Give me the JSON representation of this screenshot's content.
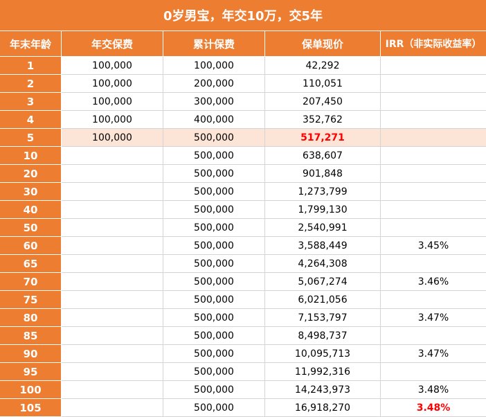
{
  "title": "0岁男宝，年交10万，交5年",
  "columns": [
    "年末年龄",
    "年交保费",
    "累计保费",
    "保单现价",
    "IRR（非实际收益率）"
  ],
  "colors": {
    "header": "#ED7D31",
    "highlight_row": "#FCE4D6",
    "emphasis_text": "#FF0000"
  },
  "rows": [
    {
      "age": "1",
      "annual": "100,000",
      "cumulative": "100,000",
      "cash_value": "42,292",
      "irr": ""
    },
    {
      "age": "2",
      "annual": "100,000",
      "cumulative": "200,000",
      "cash_value": "110,051",
      "irr": ""
    },
    {
      "age": "3",
      "annual": "100,000",
      "cumulative": "300,000",
      "cash_value": "207,450",
      "irr": ""
    },
    {
      "age": "4",
      "annual": "100,000",
      "cumulative": "400,000",
      "cash_value": "352,762",
      "irr": ""
    },
    {
      "age": "5",
      "annual": "100,000",
      "cumulative": "500,000",
      "cash_value": "517,271",
      "irr": "",
      "highlight": true,
      "emphasis": [
        "cash_value"
      ]
    },
    {
      "age": "10",
      "annual": "",
      "cumulative": "500,000",
      "cash_value": "638,607",
      "irr": ""
    },
    {
      "age": "20",
      "annual": "",
      "cumulative": "500,000",
      "cash_value": "901,848",
      "irr": ""
    },
    {
      "age": "30",
      "annual": "",
      "cumulative": "500,000",
      "cash_value": "1,273,799",
      "irr": ""
    },
    {
      "age": "40",
      "annual": "",
      "cumulative": "500,000",
      "cash_value": "1,799,130",
      "irr": ""
    },
    {
      "age": "50",
      "annual": "",
      "cumulative": "500,000",
      "cash_value": "2,540,991",
      "irr": ""
    },
    {
      "age": "60",
      "annual": "",
      "cumulative": "500,000",
      "cash_value": "3,588,449",
      "irr": "3.45%"
    },
    {
      "age": "65",
      "annual": "",
      "cumulative": "500,000",
      "cash_value": "4,264,308",
      "irr": ""
    },
    {
      "age": "70",
      "annual": "",
      "cumulative": "500,000",
      "cash_value": "5,067,274",
      "irr": "3.46%"
    },
    {
      "age": "75",
      "annual": "",
      "cumulative": "500,000",
      "cash_value": "6,021,056",
      "irr": ""
    },
    {
      "age": "80",
      "annual": "",
      "cumulative": "500,000",
      "cash_value": "7,153,797",
      "irr": "3.47%"
    },
    {
      "age": "85",
      "annual": "",
      "cumulative": "500,000",
      "cash_value": "8,498,737",
      "irr": ""
    },
    {
      "age": "90",
      "annual": "",
      "cumulative": "500,000",
      "cash_value": "10,095,713",
      "irr": "3.47%"
    },
    {
      "age": "95",
      "annual": "",
      "cumulative": "500,000",
      "cash_value": "11,992,316",
      "irr": ""
    },
    {
      "age": "100",
      "annual": "",
      "cumulative": "500,000",
      "cash_value": "14,243,973",
      "irr": "3.48%"
    },
    {
      "age": "105",
      "annual": "",
      "cumulative": "500,000",
      "cash_value": "16,918,270",
      "irr": "3.48%",
      "emphasis": [
        "irr"
      ]
    }
  ]
}
